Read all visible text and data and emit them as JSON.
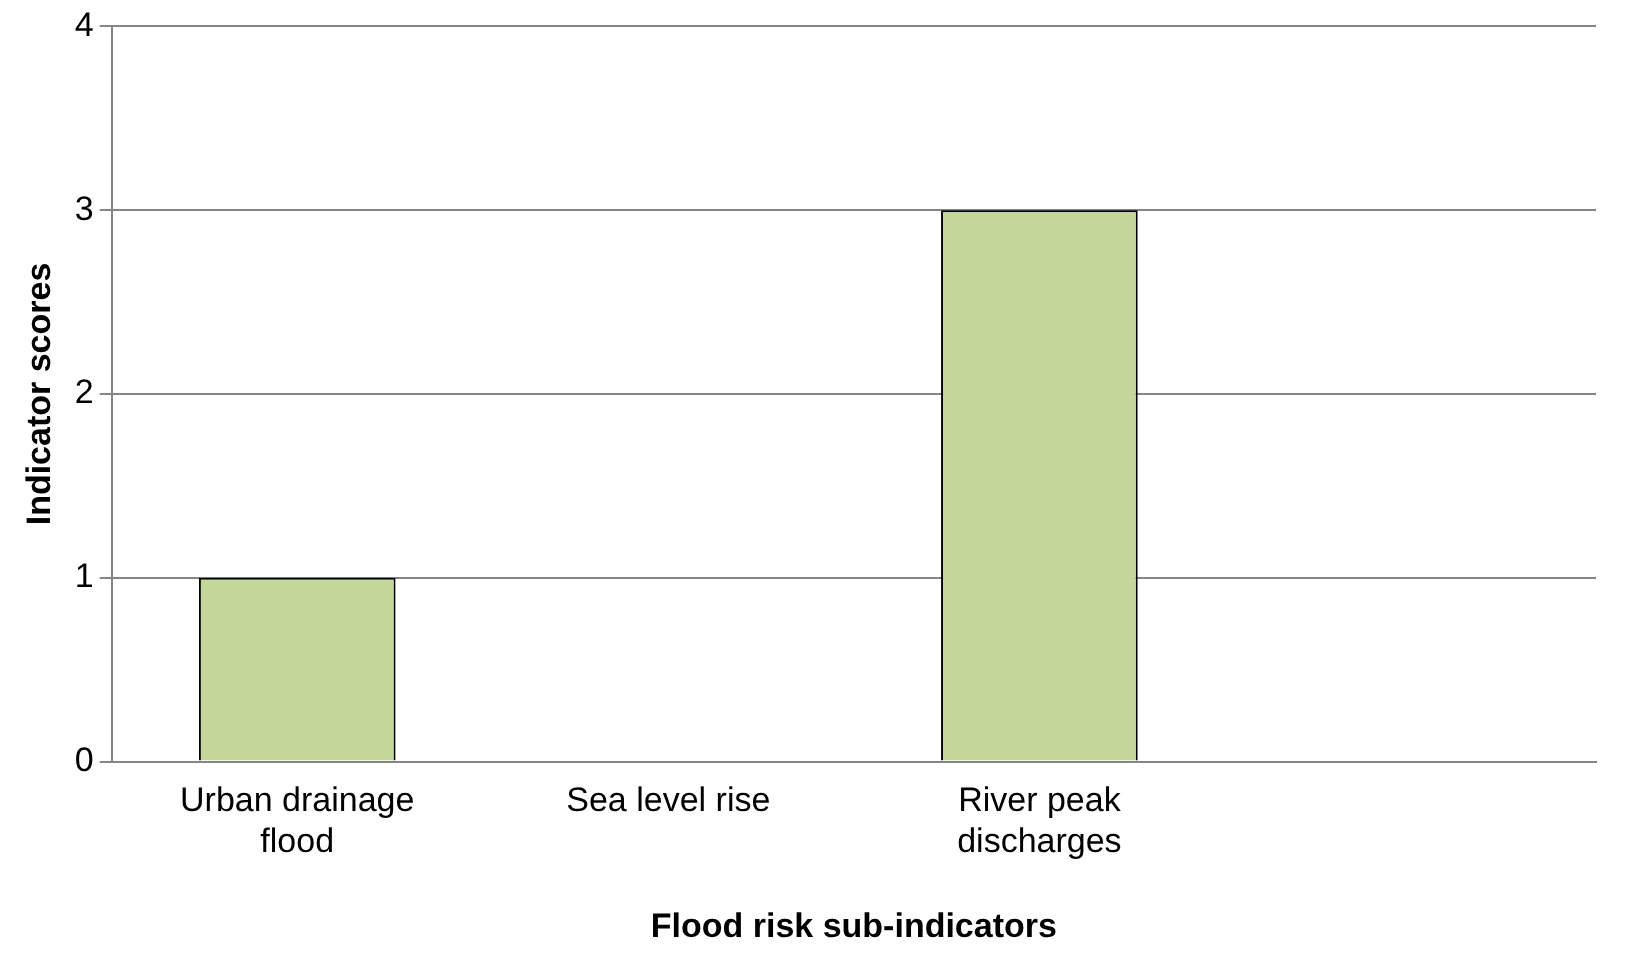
{
  "chart_data": {
    "type": "bar",
    "xlabel": "Flood risk sub-indicators",
    "ylabel": "Indicator scores",
    "categories": [
      "Urban drainage flood",
      "Sea level rise",
      "River peak discharges",
      null
    ],
    "values": [
      1,
      0,
      3,
      null
    ],
    "color": "#c4d79b",
    "ylim": [
      0,
      4
    ],
    "yticks": [
      0,
      1,
      2,
      3,
      4
    ],
    "grid": "y"
  }
}
